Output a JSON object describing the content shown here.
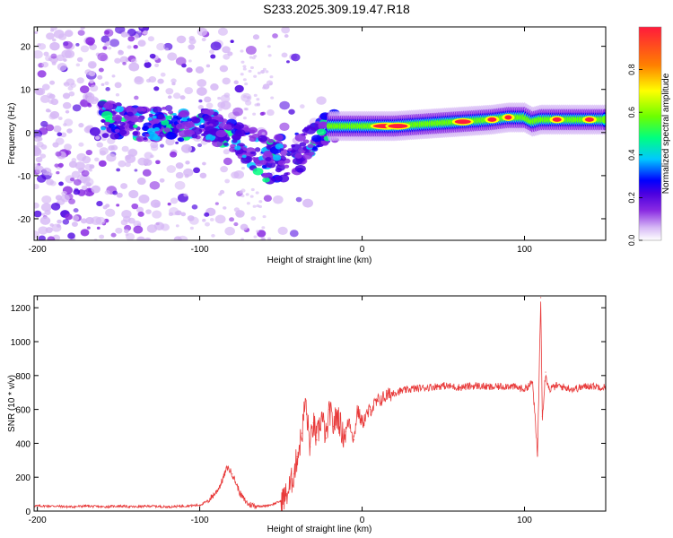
{
  "title": "S233.2025.309.19.47.R18",
  "colors": {
    "line": "#e83a3a",
    "axis": "#000000",
    "background": "#ffffff"
  },
  "chart_data": [
    {
      "type": "heatmap",
      "xlabel": "Height of straight line (km)",
      "ylabel": "Frequency (Hz)",
      "xlim": [
        -202,
        150
      ],
      "ylim": [
        -25,
        24.5
      ],
      "xticks": [
        -200,
        -100,
        0,
        100
      ],
      "xtick_labels": [
        "-200",
        "-100",
        "0",
        "100"
      ],
      "yticks": [
        -20,
        -10,
        0,
        10,
        20
      ],
      "ytick_labels": [
        "-20",
        "-10",
        "0",
        "10",
        "20"
      ],
      "ridge": {
        "description": "dominant frequency ridge (approx.)",
        "x": [
          -200,
          -180,
          -160,
          -140,
          -120,
          -100,
          -90,
          -80,
          -70,
          -60,
          -50,
          -40,
          -30,
          -20,
          -10,
          0,
          10,
          20,
          40,
          60,
          80,
          90,
          100,
          105,
          110,
          120,
          150
        ],
        "y": [
          1,
          2,
          3,
          2,
          2,
          2,
          1,
          -1,
          -3,
          -6,
          -6,
          -5,
          -1,
          1.5,
          1.5,
          1.5,
          1.5,
          1.5,
          2,
          2.5,
          3,
          3.5,
          3.5,
          2.5,
          3,
          3,
          3
        ]
      },
      "colorbar": {
        "label": "Normalized spectral amplitude",
        "range": [
          0,
          1
        ],
        "ticks": [
          0.0,
          0.2,
          0.4,
          0.6,
          0.8
        ],
        "tick_labels": [
          "0.0",
          "0.2",
          "0.4",
          "0.6",
          "0.8"
        ],
        "colormap": [
          "#ffffff",
          "#d6b8f5",
          "#8a2be2",
          "#4a00e0",
          "#0000ff",
          "#00c8ff",
          "#00ff80",
          "#6cff00",
          "#ffff00",
          "#ff8000",
          "#ff1a3c"
        ]
      }
    },
    {
      "type": "line",
      "xlabel": "Height of straight line (km)",
      "ylabel": "SNR (10 * v/v)",
      "xlim": [
        -202,
        150
      ],
      "ylim": [
        0,
        1270
      ],
      "xticks": [
        -200,
        -100,
        0,
        100
      ],
      "xtick_labels": [
        "-200",
        "-100",
        "0",
        "100"
      ],
      "yticks": [
        0,
        200,
        400,
        600,
        800,
        1000,
        1200
      ],
      "ytick_labels": [
        "0",
        "200",
        "400",
        "600",
        "800",
        "1000",
        "1200"
      ],
      "series": [
        {
          "name": "SNR",
          "x": [
            -202,
            -190,
            -180,
            -170,
            -160,
            -150,
            -140,
            -130,
            -120,
            -110,
            -100,
            -95,
            -90,
            -87,
            -85,
            -83,
            -80,
            -77,
            -75,
            -72,
            -70,
            -65,
            -60,
            -55,
            -50,
            -47,
            -45,
            -42,
            -40,
            -37,
            -35,
            -32,
            -30,
            -28,
            -25,
            -22,
            -20,
            -18,
            -15,
            -12,
            -10,
            -8,
            -5,
            -3,
            0,
            5,
            10,
            15,
            20,
            25,
            30,
            40,
            50,
            60,
            70,
            80,
            90,
            100,
            105,
            108,
            110,
            111,
            113,
            115,
            120,
            130,
            140,
            150
          ],
          "y": [
            30,
            30,
            25,
            30,
            25,
            30,
            25,
            30,
            25,
            30,
            35,
            60,
            110,
            160,
            210,
            260,
            220,
            150,
            100,
            60,
            40,
            30,
            30,
            40,
            60,
            90,
            130,
            220,
            320,
            460,
            650,
            380,
            520,
            420,
            560,
            430,
            600,
            500,
            570,
            450,
            470,
            540,
            420,
            600,
            520,
            600,
            650,
            680,
            700,
            710,
            720,
            730,
            740,
            730,
            740,
            730,
            740,
            720,
            760,
            330,
            1260,
            560,
            820,
            720,
            740,
            720,
            740,
            730
          ]
        }
      ]
    }
  ]
}
